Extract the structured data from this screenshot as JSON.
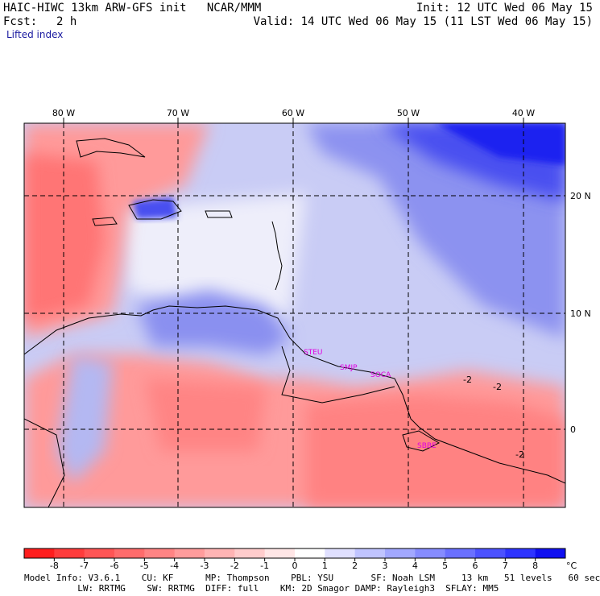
{
  "header": {
    "title": "HAIC-HIWC 13km ARW-GFS init   NCAR/MMM",
    "init": "Init: 12 UTC Wed 06 May 15",
    "fcst_label": "Fcst:",
    "fcst_value": "2 h",
    "valid": "Valid: 14 UTC Wed 06 May 15 (11 LST Wed 06 May 15)",
    "field": "Lifted index"
  },
  "map": {
    "lon_labels": [
      "80 W",
      "70 W",
      "60 W",
      "50 W",
      "40 W"
    ],
    "lat_labels": [
      "20 N",
      "10 N",
      "0"
    ],
    "stations": [
      "STEU",
      "SMJP",
      "SOCA",
      "SBBE"
    ],
    "contour_labels": [
      "-2",
      "-2",
      "-2"
    ]
  },
  "colorbar": {
    "ticks": [
      "-8",
      "-7",
      "-6",
      "-5",
      "-4",
      "-3",
      "-2",
      "-1",
      "0",
      "1",
      "2",
      "3",
      "4",
      "5",
      "6",
      "7",
      "8"
    ],
    "unit": "°C",
    "colors": [
      "#ff1e1e",
      "#ff3c3c",
      "#ff5555",
      "#ff6c6c",
      "#ff8484",
      "#ff9c9c",
      "#ffb4b4",
      "#ffcccc",
      "#ffe6e6",
      "#ffffff",
      "#e0e0ff",
      "#c0c4ff",
      "#a2a8ff",
      "#868cff",
      "#6a70ff",
      "#4c52ff",
      "#2e34ff",
      "#1010f0"
    ]
  },
  "footer": {
    "line1": "Model Info: V3.6.1    CU: KF      MP: Thompson    PBL: YSU       SF: Noah LSM     13 km   51 levels   60 sec",
    "line2": "          LW: RRTMG    SW: RRTMG  DIFF: full    KM: 2D Smagor DAMP: Rayleigh3  SFLAY: MM5"
  }
}
